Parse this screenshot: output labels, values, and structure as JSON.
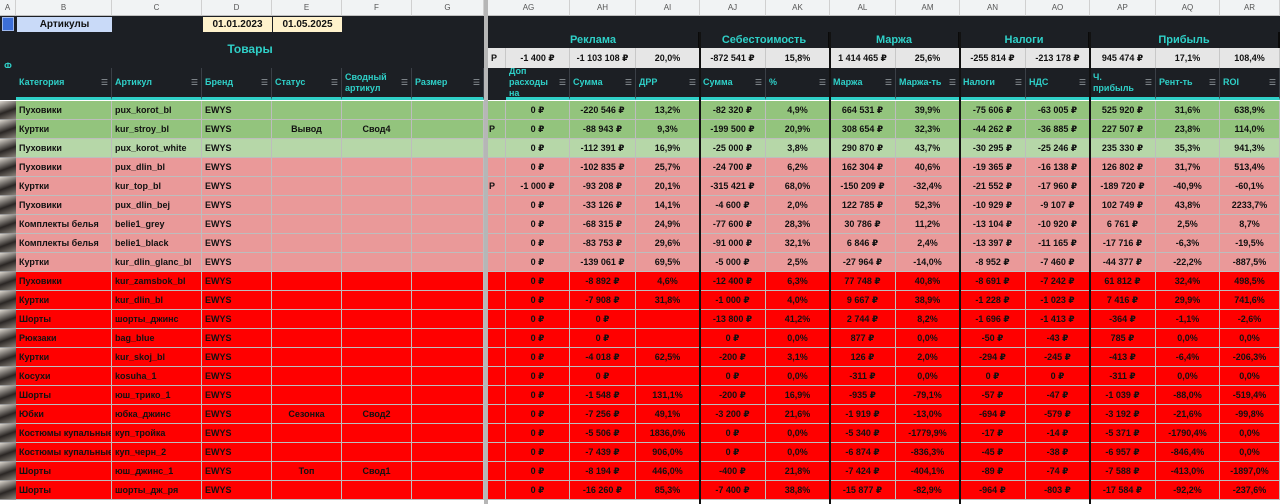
{
  "columns": [
    "A",
    "B",
    "C",
    "D",
    "E",
    "F",
    "G",
    "AG",
    "AH",
    "AI",
    "AJ",
    "AK",
    "AL",
    "AM",
    "AN",
    "AO",
    "AP",
    "AQ",
    "AR"
  ],
  "header": {
    "articles_label": "Артикулы",
    "date_from": "01.01.2023",
    "date_to": "01.05.2025",
    "tovary": "Товары",
    "side_label": "Ф"
  },
  "groups": {
    "reklama": "Реклама",
    "sebestoimost": "Себестоимость",
    "marzha": "Маржа",
    "nalogi": "Налоги",
    "pribyl": "Прибыль"
  },
  "totals": {
    "g_partial": "Р",
    "ag": "-1 400 ₽",
    "ah": "-1 103 108 ₽",
    "ai": "20,0%",
    "aj": "-872 541 ₽",
    "ak": "15,8%",
    "al": "1 414 465 ₽",
    "am": "25,6%",
    "an": "-255 814 ₽",
    "ao": "-213 178 ₽",
    "ap": "945 474 ₽",
    "aq": "17,1%",
    "ar": "108,4%"
  },
  "filters": {
    "b": "Категория",
    "c": "Артикул",
    "d": "Бренд",
    "e": "Статус",
    "f": "Сводный артикул",
    "g": "Размер",
    "ag": "Доп расходы на",
    "ah": "Сумма",
    "ai": "ДРР",
    "aj": "Сумма",
    "ak": "%",
    "al": "Маржа",
    "am": "Маржа-ть",
    "an": "Налоги",
    "ao": "НДС",
    "ap": "Ч. прибыль",
    "aq": "Рент-ть",
    "ar": "ROI"
  },
  "colors": {
    "green_dark": "#93c47d",
    "green_light": "#b6d7a8",
    "red_light": "#ea9999",
    "red": "#ff0000",
    "header_dark": "#1c1f24",
    "teal": "#2fd0c8"
  },
  "rows": [
    {
      "color": "green_dark",
      "b": "Пуховики",
      "c": "pux_korot_bl",
      "d": "EWYS",
      "e": "",
      "f": "",
      "g": "",
      "gp": "",
      "ag": "0 ₽",
      "ah": "-220 546 ₽",
      "ai": "13,2%",
      "aj": "-82 320 ₽",
      "ak": "4,9%",
      "al": "664 531 ₽",
      "am": "39,9%",
      "an": "-75 606 ₽",
      "ao": "-63 005 ₽",
      "ap": "525 920 ₽",
      "aq": "31,6%",
      "ar": "638,9%"
    },
    {
      "color": "green_dark",
      "b": "Куртки",
      "c": "kur_stroy_bl",
      "d": "EWYS",
      "e": "Вывод",
      "f": "Свод4",
      "g": "",
      "gp": "Р",
      "ag": "0 ₽",
      "ah": "-88 943 ₽",
      "ai": "9,3%",
      "aj": "-199 500 ₽",
      "ak": "20,9%",
      "al": "308 654 ₽",
      "am": "32,3%",
      "an": "-44 262 ₽",
      "ao": "-36 885 ₽",
      "ap": "227 507 ₽",
      "aq": "23,8%",
      "ar": "114,0%"
    },
    {
      "color": "green_light",
      "b": "Пуховики",
      "c": "pux_korot_white",
      "d": "EWYS",
      "e": "",
      "f": "",
      "g": "",
      "gp": "",
      "ag": "0 ₽",
      "ah": "-112 391 ₽",
      "ai": "16,9%",
      "aj": "-25 000 ₽",
      "ak": "3,8%",
      "al": "290 870 ₽",
      "am": "43,7%",
      "an": "-30 295 ₽",
      "ao": "-25 246 ₽",
      "ap": "235 330 ₽",
      "aq": "35,3%",
      "ar": "941,3%"
    },
    {
      "color": "red_light",
      "b": "Пуховики",
      "c": "pux_dlin_bl",
      "d": "EWYS",
      "e": "",
      "f": "",
      "g": "",
      "gp": "",
      "ag": "0 ₽",
      "ah": "-102 835 ₽",
      "ai": "25,7%",
      "aj": "-24 700 ₽",
      "ak": "6,2%",
      "al": "162 304 ₽",
      "am": "40,6%",
      "an": "-19 365 ₽",
      "ao": "-16 138 ₽",
      "ap": "126 802 ₽",
      "aq": "31,7%",
      "ar": "513,4%"
    },
    {
      "color": "red_light",
      "b": "Куртки",
      "c": "kur_top_bl",
      "d": "EWYS",
      "e": "",
      "f": "",
      "g": "",
      "gp": "Р",
      "ag": "-1 000 ₽",
      "ah": "-93 208 ₽",
      "ai": "20,1%",
      "aj": "-315 421 ₽",
      "ak": "68,0%",
      "al": "-150 209 ₽",
      "am": "-32,4%",
      "an": "-21 552 ₽",
      "ao": "-17 960 ₽",
      "ap": "-189 720 ₽",
      "aq": "-40,9%",
      "ar": "-60,1%"
    },
    {
      "color": "red_light",
      "b": "Пуховики",
      "c": "pux_dlin_bej",
      "d": "EWYS",
      "e": "",
      "f": "",
      "g": "",
      "gp": "",
      "ag": "0 ₽",
      "ah": "-33 126 ₽",
      "ai": "14,1%",
      "aj": "-4 600 ₽",
      "ak": "2,0%",
      "al": "122 785 ₽",
      "am": "52,3%",
      "an": "-10 929 ₽",
      "ao": "-9 107 ₽",
      "ap": "102 749 ₽",
      "aq": "43,8%",
      "ar": "2233,7%"
    },
    {
      "color": "red_light",
      "b": "Комплекты белья",
      "c": "belie1_grey",
      "d": "EWYS",
      "e": "",
      "f": "",
      "g": "",
      "gp": "",
      "ag": "0 ₽",
      "ah": "-68 315 ₽",
      "ai": "24,9%",
      "aj": "-77 600 ₽",
      "ak": "28,3%",
      "al": "30 786 ₽",
      "am": "11,2%",
      "an": "-13 104 ₽",
      "ao": "-10 920 ₽",
      "ap": "6 761 ₽",
      "aq": "2,5%",
      "ar": "8,7%"
    },
    {
      "color": "red_light",
      "b": "Комплекты белья",
      "c": "belie1_black",
      "d": "EWYS",
      "e": "",
      "f": "",
      "g": "",
      "gp": "",
      "ag": "0 ₽",
      "ah": "-83 753 ₽",
      "ai": "29,6%",
      "aj": "-91 000 ₽",
      "ak": "32,1%",
      "al": "6 846 ₽",
      "am": "2,4%",
      "an": "-13 397 ₽",
      "ao": "-11 165 ₽",
      "ap": "-17 716 ₽",
      "aq": "-6,3%",
      "ar": "-19,5%"
    },
    {
      "color": "red_light",
      "b": "Куртки",
      "c": "kur_dlin_glanc_bl",
      "d": "EWYS",
      "e": "",
      "f": "",
      "g": "",
      "gp": "",
      "ag": "0 ₽",
      "ah": "-139 061 ₽",
      "ai": "69,5%",
      "aj": "-5 000 ₽",
      "ak": "2,5%",
      "al": "-27 964 ₽",
      "am": "-14,0%",
      "an": "-8 952 ₽",
      "ao": "-7 460 ₽",
      "ap": "-44 377 ₽",
      "aq": "-22,2%",
      "ar": "-887,5%"
    },
    {
      "color": "red",
      "b": "Пуховики",
      "c": "kur_zamsbok_bl",
      "d": "EWYS",
      "e": "",
      "f": "",
      "g": "",
      "gp": "",
      "ag": "0 ₽",
      "ah": "-8 892 ₽",
      "ai": "4,6%",
      "aj": "-12 400 ₽",
      "ak": "6,3%",
      "al": "77 748 ₽",
      "am": "40,8%",
      "an": "-8 691 ₽",
      "ao": "-7 242 ₽",
      "ap": "61 812 ₽",
      "aq": "32,4%",
      "ar": "498,5%"
    },
    {
      "color": "red",
      "b": "Куртки",
      "c": "kur_dlin_bl",
      "d": "EWYS",
      "e": "",
      "f": "",
      "g": "",
      "gp": "",
      "ag": "0 ₽",
      "ah": "-7 908 ₽",
      "ai": "31,8%",
      "aj": "-1 000 ₽",
      "ak": "4,0%",
      "al": "9 667 ₽",
      "am": "38,9%",
      "an": "-1 228 ₽",
      "ao": "-1 023 ₽",
      "ap": "7 416 ₽",
      "aq": "29,9%",
      "ar": "741,6%"
    },
    {
      "color": "red",
      "b": "Шорты",
      "c": "шорты_джинс",
      "d": "EWYS",
      "e": "",
      "f": "",
      "g": "",
      "gp": "",
      "ag": "0 ₽",
      "ah": "0 ₽",
      "ai": "",
      "aj": "-13 800 ₽",
      "ak": "41,2%",
      "al": "2 744 ₽",
      "am": "8,2%",
      "an": "-1 696 ₽",
      "ao": "-1 413 ₽",
      "ap": "-364 ₽",
      "aq": "-1,1%",
      "ar": "-2,6%"
    },
    {
      "color": "red",
      "b": "Рюкзаки",
      "c": "bag_blue",
      "d": "EWYS",
      "e": "",
      "f": "",
      "g": "",
      "gp": "",
      "ag": "0 ₽",
      "ah": "0 ₽",
      "ai": "",
      "aj": "0 ₽",
      "ak": "0,0%",
      "al": "877 ₽",
      "am": "0,0%",
      "an": "-50 ₽",
      "ao": "-43 ₽",
      "ap": "785 ₽",
      "aq": "0,0%",
      "ar": "0,0%"
    },
    {
      "color": "red",
      "b": "Куртки",
      "c": "kur_skoj_bl",
      "d": "EWYS",
      "e": "",
      "f": "",
      "g": "",
      "gp": "",
      "ag": "0 ₽",
      "ah": "-4 018 ₽",
      "ai": "62,5%",
      "aj": "-200 ₽",
      "ak": "3,1%",
      "al": "126 ₽",
      "am": "2,0%",
      "an": "-294 ₽",
      "ao": "-245 ₽",
      "ap": "-413 ₽",
      "aq": "-6,4%",
      "ar": "-206,3%"
    },
    {
      "color": "red",
      "b": "Косухи",
      "c": "kosuha_1",
      "d": "EWYS",
      "e": "",
      "f": "",
      "g": "",
      "gp": "",
      "ag": "0 ₽",
      "ah": "0 ₽",
      "ai": "",
      "aj": "0 ₽",
      "ak": "0,0%",
      "al": "-311 ₽",
      "am": "0,0%",
      "an": "0 ₽",
      "ao": "0 ₽",
      "ap": "-311 ₽",
      "aq": "0,0%",
      "ar": "0,0%"
    },
    {
      "color": "red",
      "b": "Шорты",
      "c": "юш_трико_1",
      "d": "EWYS",
      "e": "",
      "f": "",
      "g": "",
      "gp": "",
      "ag": "0 ₽",
      "ah": "-1 548 ₽",
      "ai": "131,1%",
      "aj": "-200 ₽",
      "ak": "16,9%",
      "al": "-935 ₽",
      "am": "-79,1%",
      "an": "-57 ₽",
      "ao": "-47 ₽",
      "ap": "-1 039 ₽",
      "aq": "-88,0%",
      "ar": "-519,4%"
    },
    {
      "color": "red",
      "b": "Юбки",
      "c": "юбка_джинс",
      "d": "EWYS",
      "e": "Сезонка",
      "f": "Свод2",
      "g": "",
      "gp": "",
      "ag": "0 ₽",
      "ah": "-7 256 ₽",
      "ai": "49,1%",
      "aj": "-3 200 ₽",
      "ak": "21,6%",
      "al": "-1 919 ₽",
      "am": "-13,0%",
      "an": "-694 ₽",
      "ao": "-579 ₽",
      "ap": "-3 192 ₽",
      "aq": "-21,6%",
      "ar": "-99,8%"
    },
    {
      "color": "red",
      "b": "Костюмы купальные",
      "c": "куп_тройка",
      "d": "EWYS",
      "e": "",
      "f": "",
      "g": "",
      "gp": "",
      "ag": "0 ₽",
      "ah": "-5 506 ₽",
      "ai": "1836,0%",
      "aj": "0 ₽",
      "ak": "0,0%",
      "al": "-5 340 ₽",
      "am": "-1779,9%",
      "an": "-17 ₽",
      "ao": "-14 ₽",
      "ap": "-5 371 ₽",
      "aq": "-1790,4%",
      "ar": "0,0%"
    },
    {
      "color": "red",
      "b": "Костюмы купальные",
      "c": "куп_черн_2",
      "d": "EWYS",
      "e": "",
      "f": "",
      "g": "",
      "gp": "",
      "ag": "0 ₽",
      "ah": "-7 439 ₽",
      "ai": "906,0%",
      "aj": "0 ₽",
      "ak": "0,0%",
      "al": "-6 874 ₽",
      "am": "-836,3%",
      "an": "-45 ₽",
      "ao": "-38 ₽",
      "ap": "-6 957 ₽",
      "aq": "-846,4%",
      "ar": "0,0%"
    },
    {
      "color": "red",
      "b": "Шорты",
      "c": "юш_джинс_1",
      "d": "EWYS",
      "e": "Топ",
      "f": "Свод1",
      "g": "",
      "gp": "",
      "ag": "0 ₽",
      "ah": "-8 194 ₽",
      "ai": "446,0%",
      "aj": "-400 ₽",
      "ak": "21,8%",
      "al": "-7 424 ₽",
      "am": "-404,1%",
      "an": "-89 ₽",
      "ao": "-74 ₽",
      "ap": "-7 588 ₽",
      "aq": "-413,0%",
      "ar": "-1897,0%"
    },
    {
      "color": "red",
      "b": "Шорты",
      "c": "шорты_дж_ря",
      "d": "EWYS",
      "e": "",
      "f": "",
      "g": "",
      "gp": "",
      "ag": "0 ₽",
      "ah": "-16 260 ₽",
      "ai": "85,3%",
      "aj": "-7 400 ₽",
      "ak": "38,8%",
      "al": "-15 877 ₽",
      "am": "-82,9%",
      "an": "-964 ₽",
      "ao": "-803 ₽",
      "ap": "-17 584 ₽",
      "aq": "-92,2%",
      "ar": "-237,6%"
    }
  ]
}
